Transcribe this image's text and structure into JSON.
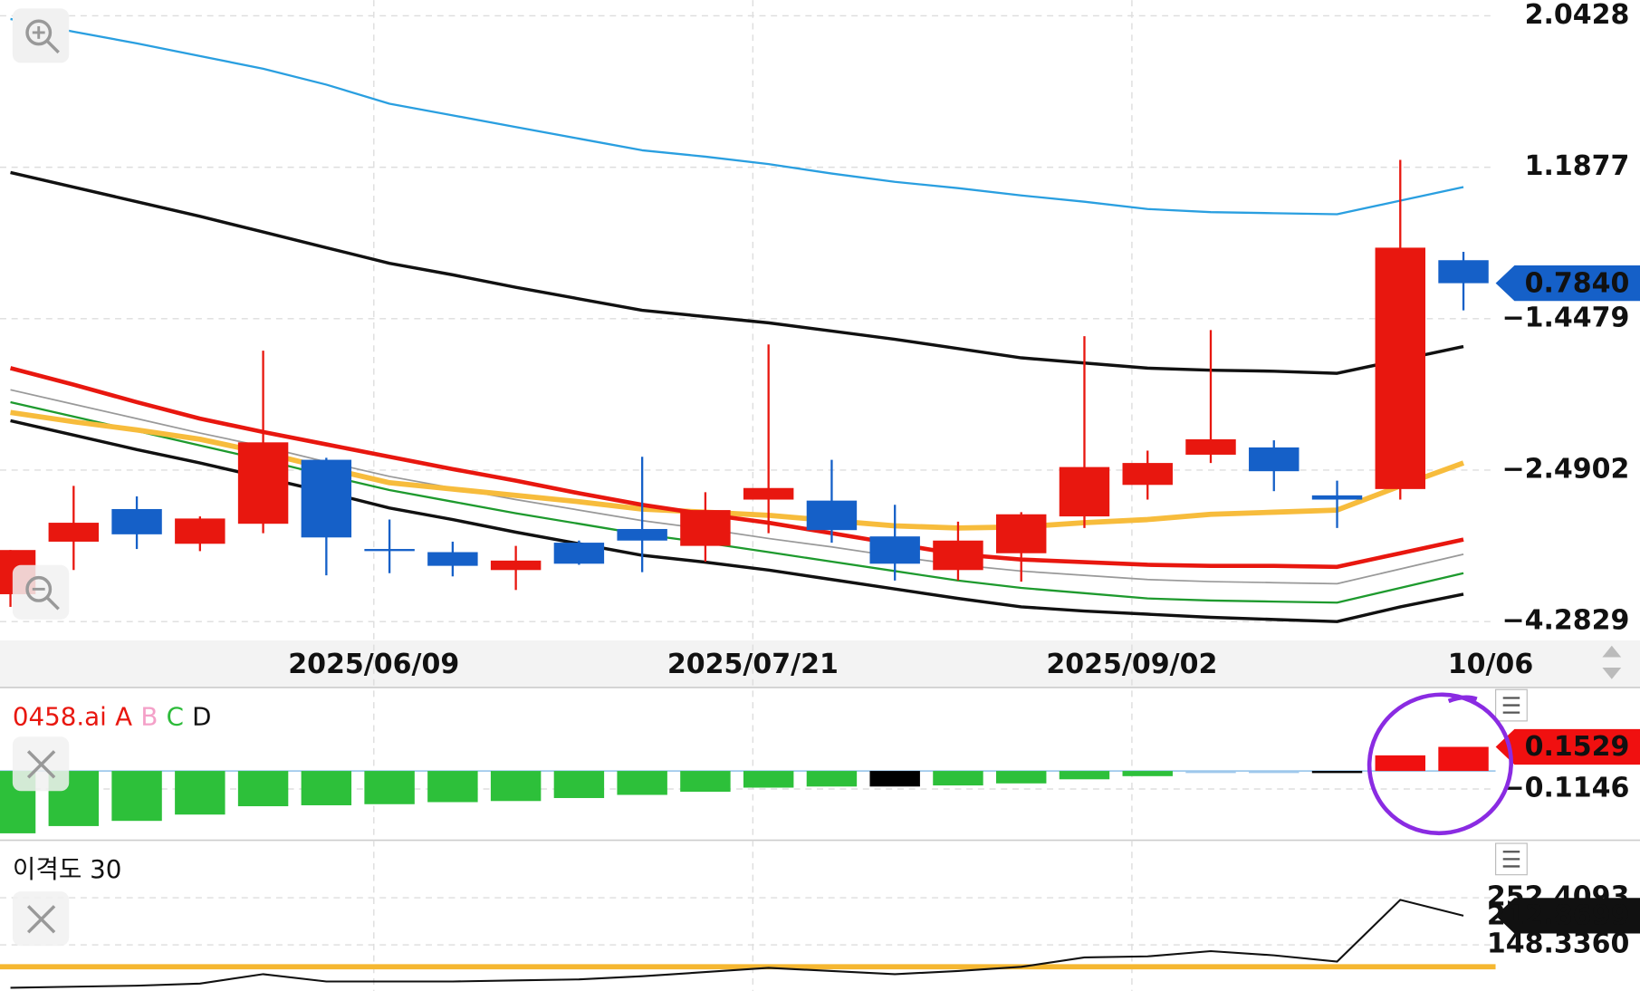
{
  "chart_data": [
    {
      "type": "candlestick",
      "categories": [
        null,
        null,
        null,
        null,
        null,
        null,
        "2025/06/09",
        null,
        null,
        null,
        null,
        null,
        "2025/07/21",
        null,
        null,
        null,
        null,
        null,
        "2025/09/02",
        null,
        null,
        null,
        null,
        "10/06"
      ],
      "open": [
        -3.959,
        -3.337,
        -2.951,
        -3.362,
        -3.125,
        -2.419,
        -3.436,
        -3.461,
        -3.673,
        -3.349,
        -3.187,
        -3.387,
        -2.839,
        -2.851,
        -3.275,
        -3.673,
        -3.474,
        -3.038,
        -2.665,
        -2.384,
        -2.334,
        -2.789,
        -2.714,
        -0.43
      ],
      "high": [
        -3.436,
        -2.677,
        -2.801,
        -3.038,
        -1.668,
        -2.405,
        -3.075,
        -3.337,
        -3.387,
        -3.324,
        -2.398,
        -2.752,
        -1.625,
        -2.419,
        -2.901,
        -3.1,
        -2.988,
        -1.568,
        -2.356,
        -1.526,
        -2.285,
        -2.615,
        1.2295,
        -0.285
      ],
      "low": [
        -4.109,
        -3.673,
        -3.424,
        -3.449,
        -3.237,
        -3.735,
        -3.71,
        -3.748,
        -3.909,
        -3.611,
        -3.698,
        -3.573,
        -3.237,
        -3.349,
        -3.797,
        -3.797,
        -3.81,
        -3.175,
        -2.839,
        -2.441,
        -2.739,
        -3.175,
        -2.839,
        -1.303
      ],
      "close": [
        -3.436,
        -3.113,
        -3.25,
        -3.063,
        -2.299,
        -3.287,
        -3.436,
        -3.623,
        -3.561,
        -3.598,
        -3.324,
        -2.963,
        -2.702,
        -3.2,
        -3.598,
        -3.324,
        -3.013,
        -2.469,
        -2.441,
        -2.278,
        -2.503,
        -2.839,
        -0.212,
        -0.83
      ],
      "up_color": "#e8170f",
      "down_color": "#1560c8",
      "lines": [
        {
          "color": "#2a9fe0",
          "width": 2,
          "values": [
            2.0249,
            1.9531,
            1.8873,
            1.8156,
            1.7438,
            1.6541,
            1.5465,
            1.4807,
            1.4149,
            1.3491,
            1.2834,
            1.2475,
            1.2056,
            1.0786,
            0.9332,
            0.8242,
            0.6969,
            0.5879,
            0.4606,
            0.4061,
            0.3879,
            0.3697,
            0.606,
            0.8423
          ]
        },
        {
          "color": "#111111",
          "width": 3,
          "values": [
            1.0968,
            0.8423,
            0.5879,
            0.3334,
            0.0608,
            -0.2119,
            -0.4846,
            -0.6845,
            -0.9026,
            -1.1026,
            -1.3025,
            -1.4116,
            -1.4763,
            -1.533,
            -1.5897,
            -1.6535,
            -1.7174,
            -1.7528,
            -1.7883,
            -1.8025,
            -1.8095,
            -1.8237,
            -1.7315,
            -1.6394
          ]
        },
        {
          "color": "#999999",
          "width": 1.5,
          "values": [
            -1.9372,
            -2.0365,
            -2.1357,
            -2.235,
            -2.3272,
            -2.4335,
            -2.5649,
            -2.7018,
            -2.8388,
            -2.9633,
            -3.0878,
            -3.1873,
            -3.2994,
            -3.399,
            -3.511,
            -3.6106,
            -3.6853,
            -3.7351,
            -3.7849,
            -3.8098,
            -3.8222,
            -3.8347,
            -3.6604,
            -3.4861
          ]
        },
        {
          "color": "#1e9a2e",
          "width": 2,
          "values": [
            -2.0223,
            -2.1215,
            -2.2208,
            -2.3201,
            -2.4194,
            -2.5524,
            -2.7267,
            -2.8637,
            -3.0006,
            -3.1251,
            -3.2496,
            -3.3492,
            -3.4612,
            -3.5733,
            -3.6853,
            -3.7973,
            -3.8845,
            -3.9467,
            -4.009,
            -4.0339,
            -4.0463,
            -4.0588,
            -3.8845,
            -3.7102
          ]
        },
        {
          "color": "#111111",
          "width": 3,
          "values": [
            -2.1499,
            -2.2492,
            -2.3485,
            -2.4406,
            -2.5773,
            -2.7516,
            -2.9384,
            -3.0753,
            -3.2247,
            -3.3616,
            -3.4986,
            -3.5797,
            -3.6729,
            -3.7849,
            -3.8969,
            -4.009,
            -4.1086,
            -4.1584,
            -4.1957,
            -4.2331,
            -4.258,
            -4.2829,
            -4.1086,
            -3.9592
          ]
        },
        {
          "color": "#f7bc3c",
          "width": 5,
          "values": [
            -2.0932,
            -2.157,
            -2.2137,
            -2.2775,
            -2.3697,
            -2.4761,
            -2.6396,
            -2.7143,
            -2.789,
            -2.8637,
            -2.9508,
            -2.9882,
            -3.0255,
            -3.0878,
            -3.15,
            -3.1749,
            -3.1624,
            -3.1127,
            -3.0753,
            -3.0131,
            -2.9882,
            -2.9633,
            -2.6769,
            -2.4406
          ]
        },
        {
          "color": "#e8170f",
          "width": 4,
          "values": [
            -1.7883,
            -1.9017,
            -2.0223,
            -2.1357,
            -2.2279,
            -2.313,
            -2.3981,
            -2.4831,
            -2.6147,
            -2.7641,
            -2.901,
            -3.0131,
            -3.1127,
            -3.2371,
            -3.3616,
            -3.4861,
            -3.5484,
            -3.5797,
            -3.6106,
            -3.6231,
            -3.6231,
            -3.6355,
            -3.4737,
            -3.3118
          ]
        }
      ],
      "scale": "piecewise",
      "ylim": [
        -4.2829,
        2.0428
      ],
      "yticks": [
        2.0428,
        1.1877,
        {
          "value": -1.4479,
          "label": "−1.4479"
        },
        {
          "value": -2.4902,
          "label": "−2.4902"
        },
        {
          "value": -4.2829,
          "label": "−4.2829"
        }
      ],
      "last_price": {
        "value": 0.784,
        "label": "0.7840"
      },
      "grid": true
    },
    {
      "type": "bar",
      "title": "0458.ai",
      "legend": [
        {
          "name": "A",
          "color": "#e8170f"
        },
        {
          "name": "B",
          "color": "#f4a0c8"
        },
        {
          "name": "C",
          "color": "#2dbb3a"
        },
        {
          "name": "D",
          "color": "#111111"
        }
      ],
      "values": [
        -0.396,
        -0.35,
        -0.317,
        -0.277,
        -0.224,
        -0.218,
        -0.211,
        -0.198,
        -0.191,
        -0.172,
        -0.152,
        -0.132,
        -0.106,
        -0.099,
        -0.099,
        -0.092,
        -0.079,
        -0.053,
        -0.033,
        -0.007,
        -0.007,
        -0.013,
        0.099,
        0.1529
      ],
      "colors": [
        "#2dc03a",
        "#2dc03a",
        "#2dc03a",
        "#2dc03a",
        "#2dc03a",
        "#2dc03a",
        "#2dc03a",
        "#2dc03a",
        "#2dc03a",
        "#2dc03a",
        "#2dc03a",
        "#2dc03a",
        "#2dc03a",
        "#2dc03a",
        "#000000",
        "#2dc03a",
        "#2dc03a",
        "#2dc03a",
        "#2dc03a",
        "#9ec8ec",
        "#9ec8ec",
        "#000000",
        "#f01010",
        "#f01010"
      ],
      "ylim": [
        -0.42,
        0.51
      ],
      "yticks": [
        {
          "value": -0.1146,
          "label": "−0.1146"
        }
      ],
      "grid": true
    },
    {
      "type": "line",
      "title": "이격도 30",
      "color": "#111111",
      "values": [
        53.5,
        55.82,
        58.13,
        62.75,
        83.57,
        67.38,
        67.38,
        67.38,
        69.69,
        72.01,
        78.95,
        88.2,
        97.45,
        90.51,
        83.57,
        90.51,
        99.76,
        120.58,
        122.89,
        134.46,
        125.21,
        111.33,
        247.8,
        212.8699
      ],
      "ref_line": {
        "value": 100,
        "color": "#f5b731"
      },
      "ylim": [
        51.2,
        375.0
      ],
      "yticks": [
        252.4093,
        {
          "value": 148.336,
          "label": "148.3360"
        }
      ],
      "grid": true
    }
  ]
}
